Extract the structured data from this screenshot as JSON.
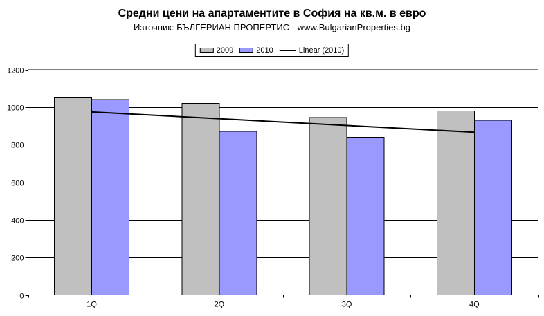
{
  "chart_data": {
    "type": "bar",
    "title": "Средни цени на апартаментите в София на кв.м. в евро",
    "subtitle": "Източник: БЪЛГЕРИАН ПРОПЕРТИС - www.BulgarianProperties.bg",
    "categories": [
      "1Q",
      "2Q",
      "3Q",
      "4Q"
    ],
    "series": [
      {
        "name": "2009",
        "color": "#C0C0C0",
        "values": [
          1050,
          1020,
          945,
          980
        ]
      },
      {
        "name": "2010",
        "color": "#9999FF",
        "values": [
          1040,
          870,
          840,
          930
        ]
      }
    ],
    "trendline": {
      "label": "Linear (2010)",
      "applies_to": "2010",
      "color": "#000000",
      "y_start": 974,
      "y_end": 866
    },
    "xlabel": "",
    "ylabel": "",
    "ylim": [
      0,
      1200
    ],
    "ytick_step": 200,
    "y_tick_labels": [
      "0",
      "200",
      "400",
      "600",
      "800",
      "1000",
      "1200"
    ],
    "grid": true,
    "legend_position": "top-center",
    "colors": {
      "gridline": "#000000",
      "plot_border": "#808080",
      "axis": "#000000",
      "bar_outline": "#000000",
      "text": "#000000",
      "background": "#FFFFFF"
    }
  }
}
